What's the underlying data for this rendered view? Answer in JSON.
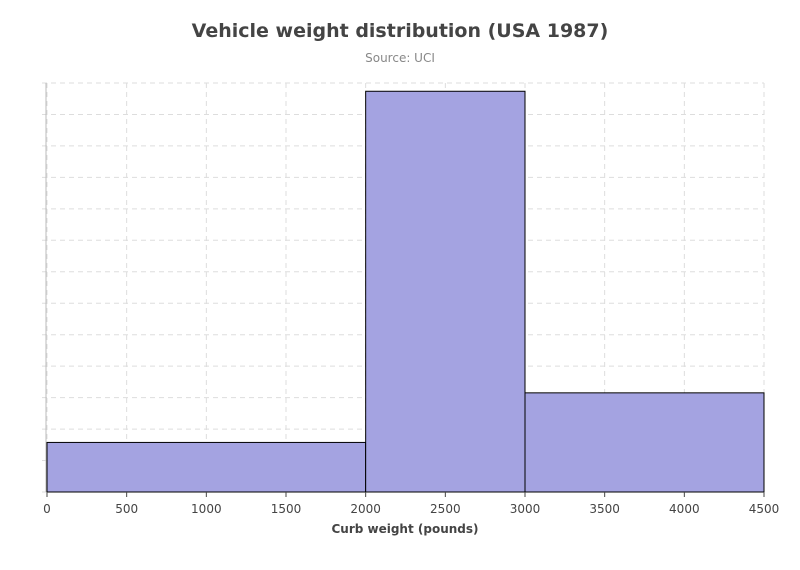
{
  "chart_data": {
    "type": "bar",
    "title": "Vehicle weight distribution (USA 1987)",
    "subtitle": "Source: UCI",
    "xlabel": "Curb weight (pounds)",
    "ylabel": "",
    "bins": [
      {
        "from": 0,
        "to": 2000,
        "value": 12
      },
      {
        "from": 2000,
        "to": 3000,
        "value": 97
      },
      {
        "from": 3000,
        "to": 4500,
        "value": 24
      }
    ],
    "xlim": [
      0,
      4500
    ],
    "ylim": [
      0,
      99
    ],
    "x_ticks": [
      0,
      500,
      1000,
      1500,
      2000,
      2500,
      3000,
      3500,
      4000,
      4500
    ],
    "y_gridlines": 13,
    "y_tick_labels_shown": false,
    "grid": true,
    "colors": {
      "bar_fill": "#a4a3e1",
      "bar_stroke": "#000000",
      "grid": "#dddddd",
      "axis": "#bbbbbb",
      "title": "#444444",
      "subtitle": "#888888"
    }
  }
}
